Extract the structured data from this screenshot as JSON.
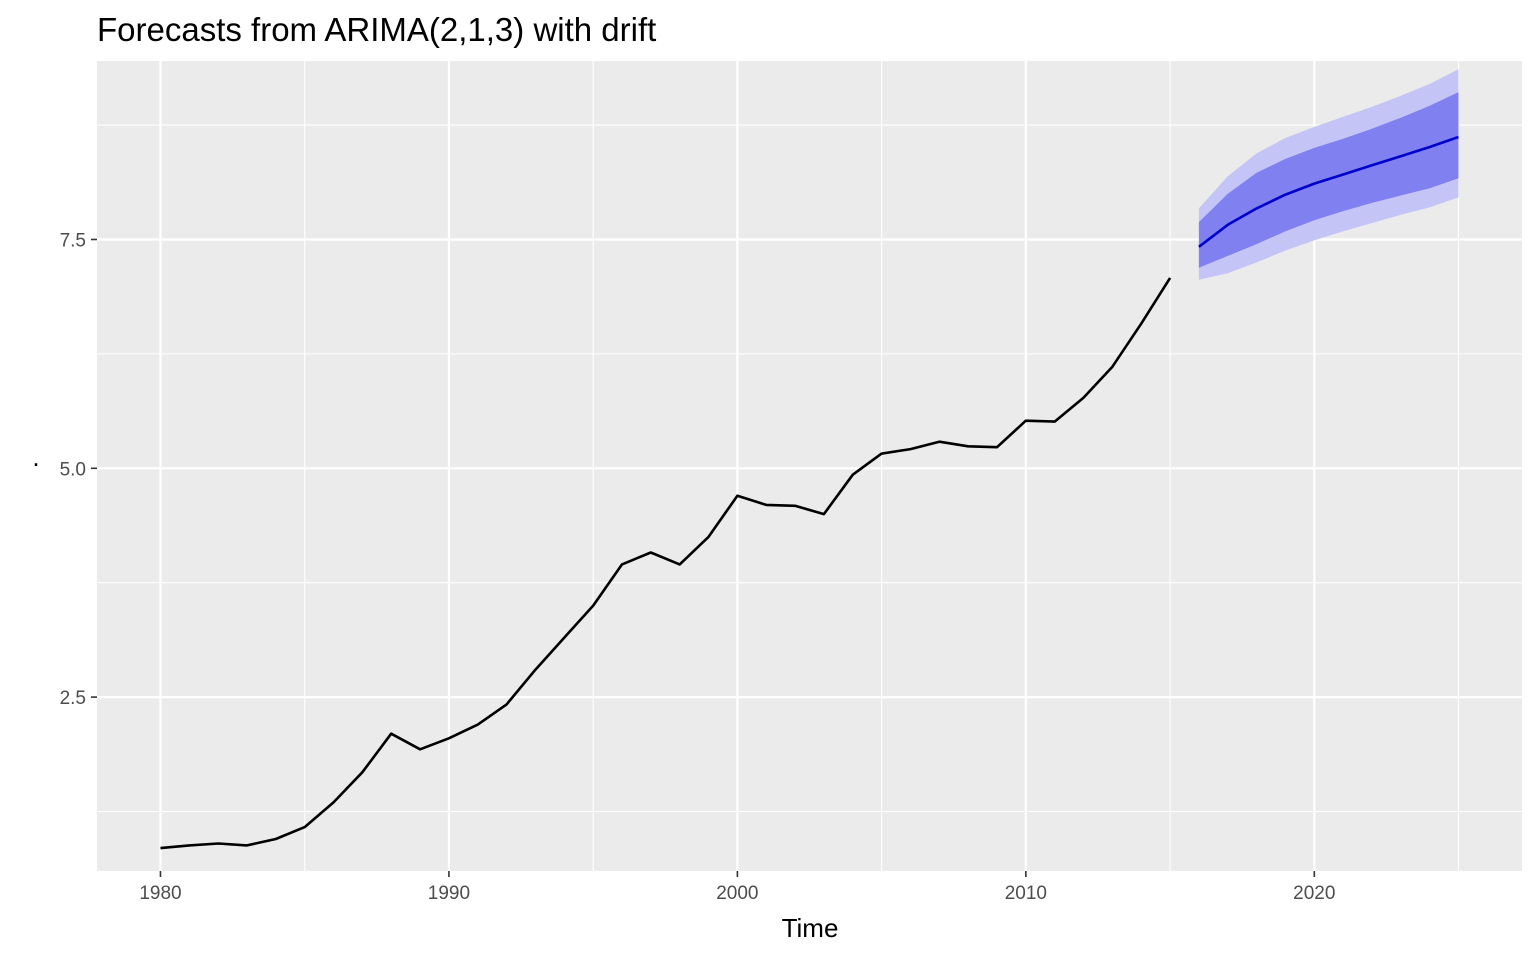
{
  "chart_data": {
    "type": "line",
    "title": "Forecasts from ARIMA(2,1,3) with drift",
    "xlabel": "Time",
    "ylabel": ".",
    "xlim": [
      1977.8,
      2027.2
    ],
    "ylim": [
      0.6,
      9.45
    ],
    "x_ticks": [
      1980,
      1990,
      2000,
      2010,
      2020
    ],
    "x_tick_labels": [
      "1980",
      "1990",
      "2000",
      "2010",
      "2020"
    ],
    "y_ticks": [
      2.5,
      5.0,
      7.5
    ],
    "y_tick_labels": [
      "2.5",
      "5.0",
      "7.5"
    ],
    "y_minor": [
      1.25,
      3.75,
      6.25,
      8.75
    ],
    "grid": true,
    "colors": {
      "panel": "#ebebeb",
      "grid": "#ffffff",
      "observed": "#000000",
      "forecast": "#0000cc",
      "band80": "#8080f0",
      "band95": "#c4c4f6"
    },
    "series": [
      {
        "role": "observed",
        "x": [
          1980,
          1981,
          1982,
          1983,
          1984,
          1985,
          1986,
          1987,
          1988,
          1989,
          1990,
          1991,
          1992,
          1993,
          1994,
          1995,
          1996,
          1997,
          1998,
          1999,
          2000,
          2001,
          2002,
          2003,
          2004,
          2005,
          2006,
          2007,
          2008,
          2009,
          2010,
          2011,
          2012,
          2013,
          2014,
          2015
        ],
        "values": [
          0.85,
          0.88,
          0.9,
          0.88,
          0.95,
          1.08,
          1.35,
          1.68,
          2.1,
          1.93,
          2.05,
          2.2,
          2.42,
          2.8,
          3.15,
          3.5,
          3.95,
          4.08,
          3.95,
          4.25,
          4.7,
          4.6,
          4.59,
          4.5,
          4.93,
          5.16,
          5.21,
          5.29,
          5.24,
          5.23,
          5.52,
          5.51,
          5.77,
          6.11,
          6.58,
          7.08
        ]
      },
      {
        "role": "forecast",
        "x": [
          2016,
          2017,
          2018,
          2019,
          2020,
          2021,
          2022,
          2023,
          2024,
          2025
        ],
        "values": [
          7.42,
          7.66,
          7.84,
          7.99,
          8.11,
          8.21,
          8.31,
          8.41,
          8.51,
          8.62
        ],
        "lo80": [
          7.19,
          7.32,
          7.45,
          7.59,
          7.71,
          7.81,
          7.9,
          7.98,
          8.06,
          8.17
        ],
        "hi80": [
          7.69,
          8.0,
          8.23,
          8.38,
          8.5,
          8.6,
          8.71,
          8.83,
          8.96,
          9.11
        ],
        "lo95": [
          7.06,
          7.13,
          7.25,
          7.38,
          7.49,
          7.59,
          7.68,
          7.77,
          7.85,
          7.96
        ],
        "hi95": [
          7.84,
          8.19,
          8.44,
          8.61,
          8.73,
          8.84,
          8.95,
          9.07,
          9.2,
          9.36
        ]
      }
    ]
  }
}
